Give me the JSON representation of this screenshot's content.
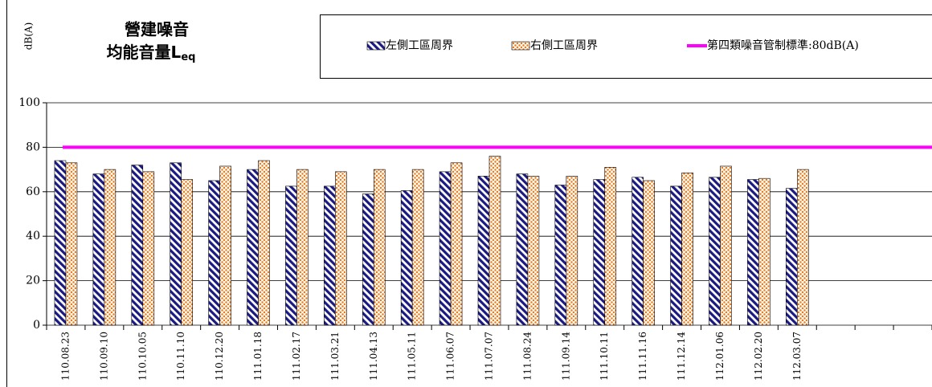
{
  "chart_data": {
    "type": "bar",
    "title_lines": [
      "營建噪音",
      "均能音量L"
    ],
    "title_subscript": "eq",
    "y_label": "dB(A)",
    "categories": [
      "110.08.23",
      "110.09.10",
      "110.10.05",
      "110.11.10",
      "110.12.20",
      "111.01.18",
      "111.02.17",
      "111.03.21",
      "111.04.13",
      "111.05.11",
      "111.06.07",
      "111.07.07",
      "111.08.24",
      "111.09.14",
      "111.10.11",
      "111.11.16",
      "111.12.14",
      "112.01.06",
      "112.02.20",
      "112.03.07",
      null,
      null,
      null
    ],
    "series": [
      {
        "name": "左側工區周界",
        "color": "#1a1a80",
        "pattern": "stripes",
        "values": [
          74,
          68,
          72,
          73,
          65,
          70,
          62.5,
          62.5,
          59,
          60.5,
          69,
          67,
          68,
          63,
          65.5,
          66.5,
          62.5,
          66.5,
          65.5,
          61.5,
          null,
          null,
          null
        ]
      },
      {
        "name": "右側工區周界",
        "color": "#e8781e",
        "pattern": "dots",
        "values": [
          73,
          70,
          69,
          65.5,
          71.5,
          74,
          70,
          69,
          70,
          70,
          73,
          76,
          67,
          67,
          71,
          65,
          68.5,
          71.5,
          66,
          70,
          null,
          null,
          null
        ]
      }
    ],
    "threshold": {
      "name": "第四類噪音管制標準:80dB(A)",
      "value": 80,
      "color": "#ff00ff"
    },
    "ylim": [
      0,
      100
    ],
    "yticks": [
      0,
      20,
      40,
      60,
      80,
      100
    ],
    "grid": true
  }
}
